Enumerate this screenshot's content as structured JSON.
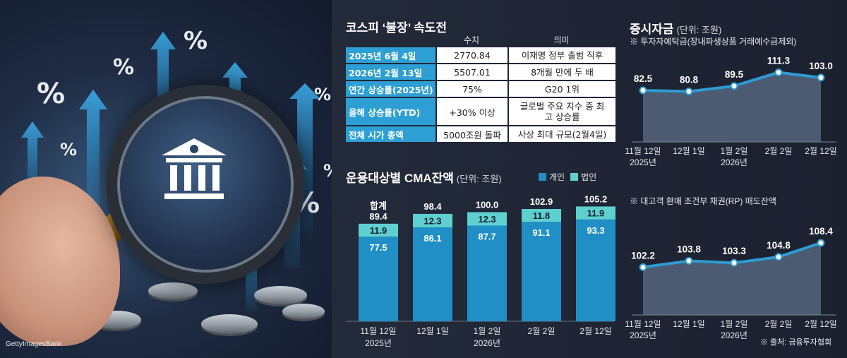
{
  "photo": {
    "credit": "GettyImagesBank",
    "percent_symbol": "%"
  },
  "kospi_table": {
    "title": "코스피 ‘불장’ 속도전",
    "columns": [
      "수치",
      "의미"
    ],
    "rows": [
      {
        "label": "2025년 6월 4일",
        "value": "2770.84",
        "meaning": "이재명 정부 출범 직후"
      },
      {
        "label": "2026년 2월 13일",
        "value": "5507.01",
        "meaning": "8개월 만에 두 배"
      },
      {
        "label": "연간 상승률(2025년)",
        "value": "75%",
        "meaning": "G20 1위"
      },
      {
        "label": "올해 상승률(YTD)",
        "value": "+30% 이상",
        "meaning": "글로벌 주요 지수 중 최고 상승률"
      },
      {
        "label": "전체 시가 총액",
        "value": "5000조원 돌파",
        "meaning": "사상 최대 규모(2월4일)"
      }
    ]
  },
  "colors": {
    "individual": "#1f8fc6",
    "corporate": "#5fd0d0",
    "line": "#2f9ad3",
    "area": "#55657e",
    "header_cell": "#2d9fd4"
  },
  "chart_data": [
    {
      "type": "bar",
      "title": "운용대상별 CMA잔액",
      "unit": "(단위: 조원)",
      "legend": [
        "개인",
        "법인"
      ],
      "total_label": "합계",
      "categories": [
        "11월 12일",
        "12월 1일",
        "1월 2일",
        "2월 2일",
        "2월 12일"
      ],
      "category_years": [
        "2025년",
        "",
        "2026년",
        "",
        ""
      ],
      "series": [
        {
          "name": "개인",
          "values": [
            77.5,
            86.1,
            87.7,
            91.1,
            93.3
          ]
        },
        {
          "name": "법인",
          "values": [
            11.9,
            12.3,
            12.3,
            11.8,
            11.9
          ]
        }
      ],
      "totals": [
        89.4,
        98.4,
        100.0,
        102.9,
        105.2
      ],
      "total_texts": [
        "89.4",
        "98.4",
        "100.0",
        "102.9",
        "105.2"
      ],
      "ylim": [
        0,
        110
      ]
    },
    {
      "type": "area",
      "title": "증시자금",
      "unit": "(단위: 조원)",
      "subtitle": "※ 투자자예탁금(장내파생상품 거래예수금제외)",
      "categories": [
        "11월 12일",
        "12월 1일",
        "1월 2일",
        "2월 2일",
        "2월 12일"
      ],
      "category_years": [
        "2025년",
        "",
        "2026년",
        "",
        ""
      ],
      "values": [
        82.5,
        80.8,
        89.5,
        111.3,
        103.0
      ],
      "value_texts": [
        "82.5",
        "80.8",
        "89.5",
        "111.3",
        "103.0"
      ],
      "ylim": [
        0,
        130
      ]
    },
    {
      "type": "area",
      "title": "",
      "subtitle": "※ 대고객 환매 조건부 채권(RP) 매도잔액",
      "categories": [
        "11월 12일",
        "12월 1일",
        "1월 2일",
        "2월 2일",
        "2월 12일"
      ],
      "category_years": [
        "2025년",
        "",
        "2026년",
        "",
        ""
      ],
      "values": [
        102.2,
        103.8,
        103.3,
        104.8,
        108.4
      ],
      "value_texts": [
        "102.2",
        "103.8",
        "103.3",
        "104.8",
        "108.4"
      ],
      "ylim": [
        90,
        112
      ]
    }
  ],
  "source": "※ 출처: 금융투자협회"
}
